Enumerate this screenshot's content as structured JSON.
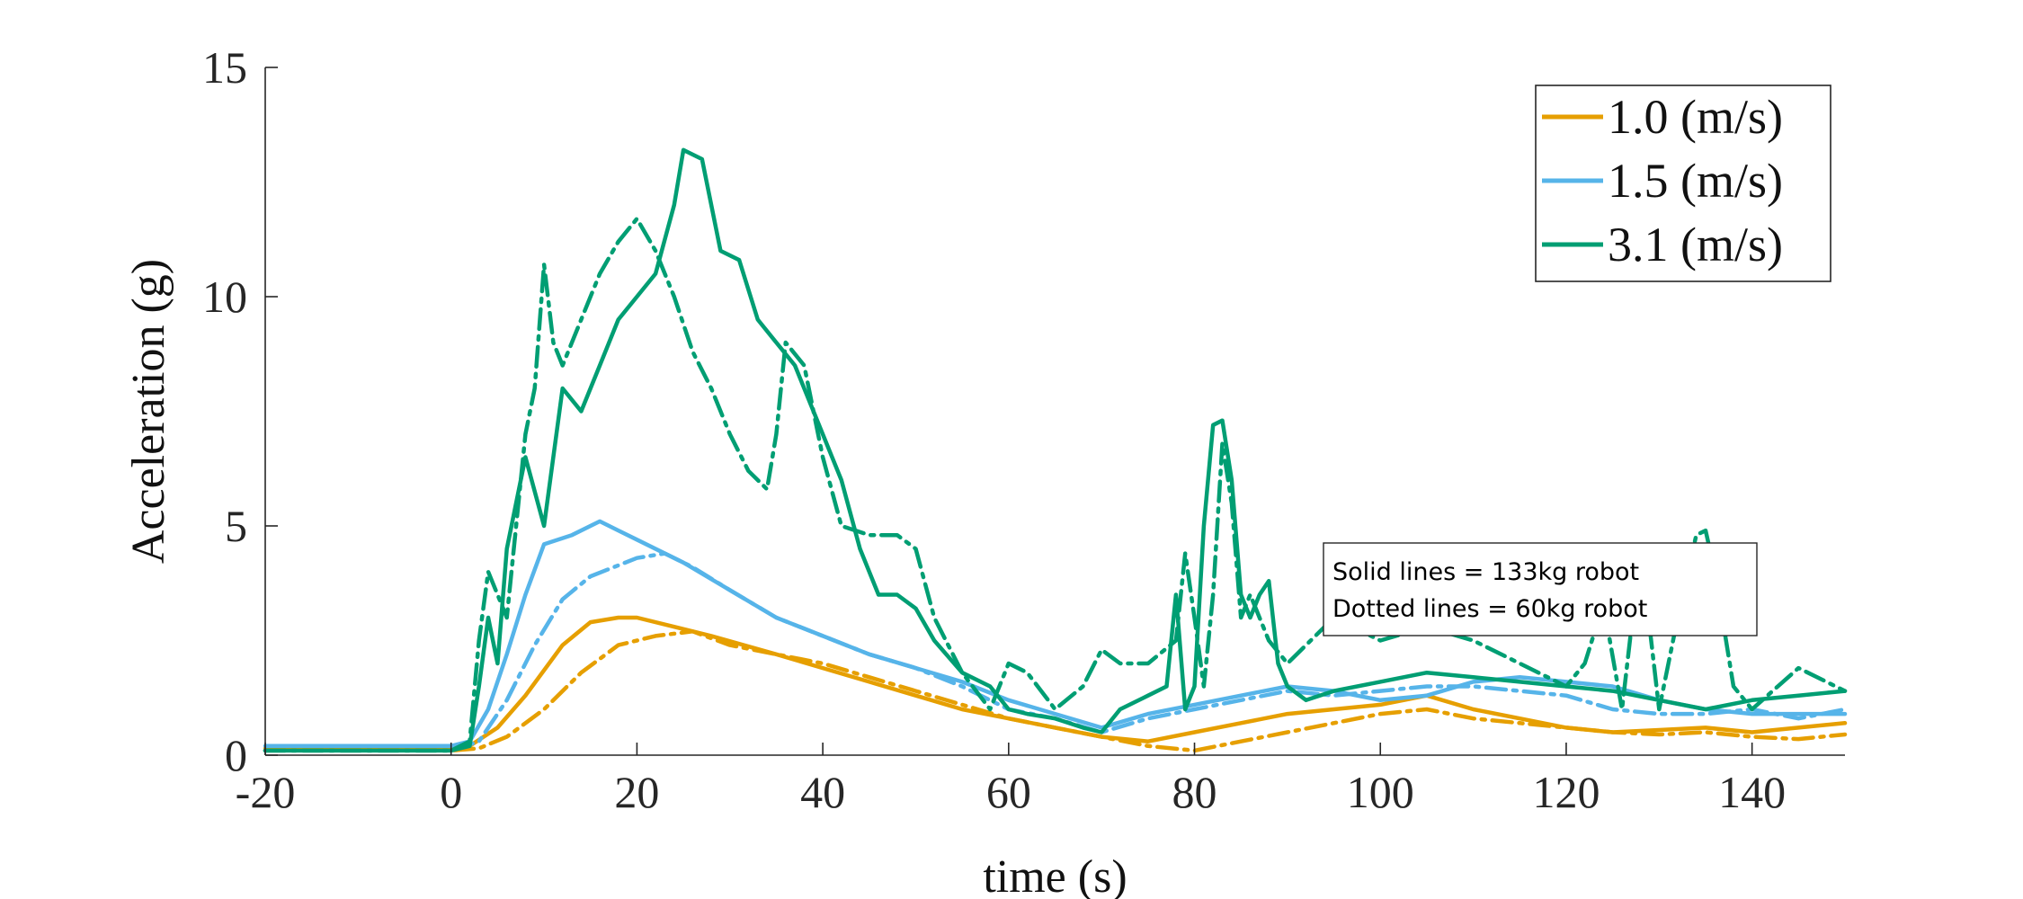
{
  "chart_data": {
    "type": "line",
    "xlabel": "time (s)",
    "ylabel": "Acceleration (g)",
    "xlim": [
      -20,
      150
    ],
    "ylim": [
      0,
      15
    ],
    "xticks": [
      -20,
      0,
      20,
      40,
      60,
      80,
      100,
      120,
      140
    ],
    "yticks": [
      0,
      5,
      10,
      15
    ],
    "grid": false,
    "legend_position": "top-right",
    "legend": [
      {
        "label": "1.0 (m/s)",
        "color": "#E69F00"
      },
      {
        "label": "1.5 (m/s)",
        "color": "#56B4E9"
      },
      {
        "label": "3.1 (m/s)",
        "color": "#009E73"
      }
    ],
    "annotation": [
      "Solid lines = 133kg robot",
      "Dotted lines = 60kg robot"
    ],
    "series": [
      {
        "name": "1.0 (m/s)",
        "robot": "133kg",
        "style": "solid",
        "color": "#E69F00",
        "x": [
          -20,
          0,
          2,
          5,
          8,
          12,
          15,
          18,
          20,
          24,
          28,
          35,
          40,
          45,
          50,
          55,
          60,
          65,
          70,
          75,
          80,
          85,
          90,
          95,
          100,
          105,
          110,
          115,
          120,
          125,
          130,
          135,
          140,
          145,
          150
        ],
        "y": [
          0.15,
          0.15,
          0.2,
          0.6,
          1.3,
          2.4,
          2.9,
          3.0,
          3.0,
          2.8,
          2.6,
          2.2,
          1.9,
          1.6,
          1.3,
          1.0,
          0.8,
          0.6,
          0.4,
          0.3,
          0.5,
          0.7,
          0.9,
          1.0,
          1.1,
          1.3,
          1.0,
          0.8,
          0.6,
          0.5,
          0.55,
          0.6,
          0.5,
          0.6,
          0.7
        ]
      },
      {
        "name": "1.0 (m/s)",
        "robot": "60kg",
        "style": "dashed",
        "color": "#E69F00",
        "x": [
          -20,
          0,
          3,
          6,
          10,
          14,
          18,
          22,
          26,
          30,
          35,
          40,
          45,
          50,
          55,
          60,
          65,
          70,
          75,
          80,
          85,
          90,
          95,
          100,
          105,
          110,
          115,
          120,
          125,
          130,
          135,
          140,
          145,
          150
        ],
        "y": [
          0.1,
          0.1,
          0.15,
          0.4,
          1.0,
          1.8,
          2.4,
          2.6,
          2.7,
          2.4,
          2.2,
          2.0,
          1.7,
          1.4,
          1.1,
          0.8,
          0.6,
          0.4,
          0.2,
          0.1,
          0.3,
          0.5,
          0.7,
          0.9,
          1.0,
          0.8,
          0.7,
          0.6,
          0.5,
          0.45,
          0.5,
          0.4,
          0.35,
          0.45
        ]
      },
      {
        "name": "1.5 (m/s)",
        "robot": "133kg",
        "style": "solid",
        "color": "#56B4E9",
        "x": [
          -20,
          0,
          2,
          4,
          6,
          8,
          10,
          13,
          16,
          18,
          20,
          25,
          30,
          35,
          40,
          45,
          50,
          55,
          60,
          65,
          70,
          75,
          80,
          85,
          90,
          95,
          100,
          105,
          110,
          115,
          120,
          125,
          130,
          135,
          140,
          145,
          150
        ],
        "y": [
          0.2,
          0.2,
          0.3,
          1.0,
          2.2,
          3.5,
          4.6,
          4.8,
          5.1,
          4.9,
          4.7,
          4.2,
          3.6,
          3.0,
          2.6,
          2.2,
          1.9,
          1.6,
          1.2,
          0.9,
          0.6,
          0.9,
          1.1,
          1.3,
          1.5,
          1.4,
          1.2,
          1.3,
          1.6,
          1.7,
          1.6,
          1.5,
          1.2,
          1.0,
          0.9,
          0.9,
          0.9
        ]
      },
      {
        "name": "1.5 (m/s)",
        "robot": "60kg",
        "style": "dashed",
        "color": "#56B4E9",
        "x": [
          -20,
          0,
          3,
          6,
          9,
          12,
          15,
          20,
          23,
          26,
          30,
          35,
          40,
          45,
          50,
          55,
          60,
          65,
          70,
          75,
          80,
          85,
          90,
          95,
          100,
          105,
          110,
          115,
          120,
          125,
          130,
          135,
          140,
          145,
          150
        ],
        "y": [
          0.1,
          0.1,
          0.3,
          1.2,
          2.4,
          3.4,
          3.9,
          4.3,
          4.4,
          4.1,
          3.6,
          3.0,
          2.6,
          2.2,
          1.9,
          1.5,
          1.0,
          0.8,
          0.5,
          0.8,
          1.0,
          1.2,
          1.4,
          1.3,
          1.4,
          1.5,
          1.5,
          1.4,
          1.3,
          1.0,
          0.9,
          0.9,
          1.0,
          0.8,
          1.0
        ]
      },
      {
        "name": "3.1 (m/s)",
        "robot": "133kg",
        "style": "solid",
        "color": "#009E73",
        "x": [
          -20,
          0,
          2,
          3,
          4,
          5,
          6,
          8,
          10,
          12,
          14,
          16,
          18,
          20,
          22,
          24,
          25,
          27,
          29,
          31,
          33,
          35,
          37,
          40,
          42,
          44,
          46,
          48,
          50,
          52,
          55,
          58,
          60,
          62,
          65,
          68,
          70,
          72,
          75,
          77,
          78,
          79,
          80,
          81,
          82,
          83,
          84,
          85,
          86,
          87,
          88,
          89,
          90,
          92,
          95,
          100,
          105,
          110,
          115,
          120,
          125,
          130,
          135,
          140,
          145,
          150
        ],
        "y": [
          0.1,
          0.1,
          0.2,
          1.5,
          3.0,
          2.0,
          4.5,
          6.5,
          5.0,
          8.0,
          7.5,
          8.5,
          9.5,
          10.0,
          10.5,
          12.0,
          13.2,
          13.0,
          11.0,
          10.8,
          9.5,
          9.0,
          8.5,
          7.0,
          6.0,
          4.5,
          3.5,
          3.5,
          3.2,
          2.5,
          1.8,
          1.5,
          1.0,
          0.9,
          0.8,
          0.6,
          0.5,
          1.0,
          1.3,
          1.5,
          3.5,
          1.0,
          1.5,
          5.0,
          7.2,
          7.3,
          6.0,
          3.5,
          3.0,
          3.5,
          3.8,
          2.0,
          1.5,
          1.2,
          1.4,
          1.6,
          1.8,
          1.7,
          1.6,
          1.5,
          1.4,
          1.2,
          1.0,
          1.2,
          1.3,
          1.4
        ]
      },
      {
        "name": "3.1 (m/s)",
        "robot": "60kg",
        "style": "dashed",
        "color": "#009E73",
        "x": [
          -20,
          0,
          2,
          3,
          4,
          5,
          6,
          8,
          9,
          10,
          11,
          12,
          14,
          16,
          18,
          20,
          22,
          24,
          26,
          28,
          30,
          32,
          34,
          35,
          36,
          38,
          40,
          42,
          45,
          48,
          50,
          52,
          55,
          58,
          60,
          62,
          65,
          68,
          70,
          72,
          75,
          78,
          79,
          80,
          81,
          82,
          83,
          84,
          85,
          86,
          88,
          90,
          95,
          100,
          105,
          110,
          115,
          120,
          122,
          124,
          126,
          128,
          130,
          132,
          134,
          135,
          136,
          138,
          140,
          145,
          150
        ],
        "y": [
          0.1,
          0.1,
          0.3,
          2.5,
          4.0,
          3.5,
          3.0,
          7.0,
          8.0,
          10.7,
          9.0,
          8.5,
          9.5,
          10.5,
          11.2,
          11.7,
          11.0,
          10.0,
          8.8,
          8.0,
          7.0,
          6.2,
          5.8,
          7.0,
          9.0,
          8.5,
          6.5,
          5.0,
          4.8,
          4.8,
          4.5,
          3.0,
          1.8,
          1.0,
          2.0,
          1.8,
          1.0,
          1.5,
          2.3,
          2.0,
          2.0,
          2.5,
          4.4,
          3.0,
          1.5,
          3.5,
          6.8,
          5.5,
          3.0,
          3.5,
          2.5,
          2.0,
          3.0,
          2.5,
          2.8,
          2.5,
          2.0,
          1.5,
          2.0,
          3.3,
          1.0,
          4.5,
          1.0,
          3.0,
          4.8,
          4.9,
          4.0,
          1.5,
          1.0,
          1.9,
          1.4
        ]
      }
    ]
  }
}
